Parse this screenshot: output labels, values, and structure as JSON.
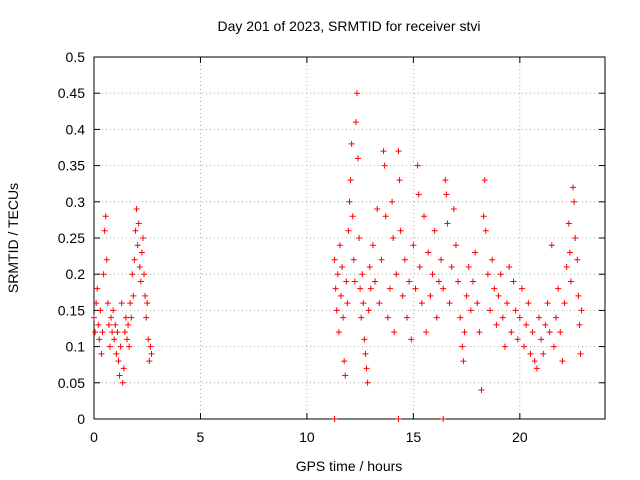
{
  "chart_data": {
    "type": "scatter",
    "title": "Day 201 of 2023, SRMTID for receiver stvi",
    "xlabel": "GPS time / hours",
    "ylabel": "SRMTID / TECUs",
    "xlim": [
      0,
      24
    ],
    "ylim": [
      0,
      0.5
    ],
    "xticks": [
      0,
      5,
      10,
      15,
      20
    ],
    "yticks": [
      0,
      0.05,
      0.1,
      0.15,
      0.2,
      0.25,
      0.3,
      0.35,
      0.4,
      0.45,
      0.5
    ],
    "grid": true,
    "marker": "+",
    "series": [
      {
        "color": "#ff0000",
        "points": [
          [
            0.0,
            0.14
          ],
          [
            0.05,
            0.12
          ],
          [
            0.1,
            0.16
          ],
          [
            0.15,
            0.18
          ],
          [
            0.2,
            0.13
          ],
          [
            0.25,
            0.11
          ],
          [
            0.3,
            0.15
          ],
          [
            0.35,
            0.09
          ],
          [
            0.4,
            0.12
          ],
          [
            0.45,
            0.2
          ],
          [
            0.5,
            0.26
          ],
          [
            0.55,
            0.28
          ],
          [
            0.6,
            0.22
          ],
          [
            0.65,
            0.16
          ],
          [
            0.7,
            0.13
          ],
          [
            0.75,
            0.1
          ],
          [
            0.8,
            0.14
          ],
          [
            0.85,
            0.12
          ],
          [
            0.9,
            0.15
          ],
          [
            0.95,
            0.11
          ],
          [
            1.0,
            0.13
          ],
          [
            1.05,
            0.09
          ],
          [
            1.1,
            0.12
          ],
          [
            1.15,
            0.08
          ],
          [
            1.2,
            0.06
          ],
          [
            1.25,
            0.1
          ],
          [
            1.3,
            0.16
          ],
          [
            1.35,
            0.05
          ],
          [
            1.4,
            0.07
          ],
          [
            1.45,
            0.12
          ],
          [
            1.5,
            0.14
          ],
          [
            1.55,
            0.11
          ],
          [
            1.6,
            0.13
          ],
          [
            1.65,
            0.1
          ],
          [
            1.7,
            0.16
          ],
          [
            1.75,
            0.14
          ],
          [
            1.8,
            0.2
          ],
          [
            1.85,
            0.17
          ],
          [
            1.9,
            0.22
          ],
          [
            1.95,
            0.26
          ],
          [
            2.0,
            0.29
          ],
          [
            2.05,
            0.24
          ],
          [
            2.1,
            0.27
          ],
          [
            2.15,
            0.21
          ],
          [
            2.2,
            0.19
          ],
          [
            2.25,
            0.23
          ],
          [
            2.3,
            0.25
          ],
          [
            2.35,
            0.2
          ],
          [
            2.4,
            0.17
          ],
          [
            2.45,
            0.14
          ],
          [
            2.5,
            0.16
          ],
          [
            2.55,
            0.11
          ],
          [
            2.6,
            0.08
          ],
          [
            2.65,
            0.1
          ],
          [
            2.7,
            0.09
          ],
          [
            11.3,
            0.22
          ],
          [
            11.35,
            0.18
          ],
          [
            11.4,
            0.15
          ],
          [
            11.45,
            0.2
          ],
          [
            11.5,
            0.12
          ],
          [
            11.55,
            0.24
          ],
          [
            11.6,
            0.17
          ],
          [
            11.65,
            0.21
          ],
          [
            11.7,
            0.14
          ],
          [
            11.75,
            0.08
          ],
          [
            11.8,
            0.06
          ],
          [
            11.85,
            0.19
          ],
          [
            11.9,
            0.16
          ],
          [
            11.95,
            0.26
          ],
          [
            12.0,
            0.3
          ],
          [
            12.05,
            0.33
          ],
          [
            12.1,
            0.38
          ],
          [
            12.15,
            0.28
          ],
          [
            12.2,
            0.22
          ],
          [
            12.25,
            0.19
          ],
          [
            12.3,
            0.41
          ],
          [
            12.35,
            0.45
          ],
          [
            12.4,
            0.36
          ],
          [
            12.45,
            0.25
          ],
          [
            12.5,
            0.18
          ],
          [
            12.55,
            0.14
          ],
          [
            12.6,
            0.2
          ],
          [
            12.65,
            0.16
          ],
          [
            12.7,
            0.11
          ],
          [
            12.75,
            0.09
          ],
          [
            12.8,
            0.07
          ],
          [
            12.85,
            0.05
          ],
          [
            12.9,
            0.15
          ],
          [
            12.95,
            0.21
          ],
          [
            13.0,
            0.18
          ],
          [
            13.1,
            0.24
          ],
          [
            13.2,
            0.19
          ],
          [
            13.3,
            0.29
          ],
          [
            13.4,
            0.16
          ],
          [
            13.5,
            0.22
          ],
          [
            13.6,
            0.37
          ],
          [
            13.65,
            0.35
          ],
          [
            13.7,
            0.28
          ],
          [
            13.8,
            0.14
          ],
          [
            13.9,
            0.18
          ],
          [
            14.0,
            0.3
          ],
          [
            14.05,
            0.25
          ],
          [
            14.1,
            0.12
          ],
          [
            14.2,
            0.2
          ],
          [
            14.3,
            0.37
          ],
          [
            14.35,
            0.33
          ],
          [
            14.4,
            0.26
          ],
          [
            14.5,
            0.17
          ],
          [
            14.6,
            0.22
          ],
          [
            14.7,
            0.14
          ],
          [
            14.8,
            0.19
          ],
          [
            14.9,
            0.11
          ],
          [
            15.0,
            0.24
          ],
          [
            15.1,
            0.18
          ],
          [
            15.2,
            0.35
          ],
          [
            15.25,
            0.31
          ],
          [
            15.3,
            0.21
          ],
          [
            15.4,
            0.16
          ],
          [
            15.5,
            0.28
          ],
          [
            15.6,
            0.12
          ],
          [
            15.7,
            0.23
          ],
          [
            15.8,
            0.17
          ],
          [
            15.9,
            0.2
          ],
          [
            16.0,
            0.26
          ],
          [
            16.1,
            0.14
          ],
          [
            16.2,
            0.19
          ],
          [
            16.3,
            0.22
          ],
          [
            16.4,
            0.18
          ],
          [
            16.5,
            0.33
          ],
          [
            16.55,
            0.31
          ],
          [
            16.6,
            0.27
          ],
          [
            16.7,
            0.16
          ],
          [
            16.8,
            0.21
          ],
          [
            16.9,
            0.29
          ],
          [
            17.0,
            0.24
          ],
          [
            17.1,
            0.19
          ],
          [
            17.2,
            0.14
          ],
          [
            17.3,
            0.1
          ],
          [
            17.35,
            0.08
          ],
          [
            17.4,
            0.12
          ],
          [
            17.5,
            0.17
          ],
          [
            17.6,
            0.21
          ],
          [
            17.7,
            0.15
          ],
          [
            17.8,
            0.19
          ],
          [
            17.9,
            0.23
          ],
          [
            18.0,
            0.16
          ],
          [
            18.1,
            0.12
          ],
          [
            18.2,
            0.04
          ],
          [
            18.3,
            0.28
          ],
          [
            18.35,
            0.33
          ],
          [
            18.4,
            0.26
          ],
          [
            18.5,
            0.2
          ],
          [
            18.6,
            0.15
          ],
          [
            18.7,
            0.22
          ],
          [
            18.8,
            0.18
          ],
          [
            18.9,
            0.13
          ],
          [
            19.0,
            0.17
          ],
          [
            19.1,
            0.2
          ],
          [
            19.2,
            0.14
          ],
          [
            19.3,
            0.1
          ],
          [
            19.4,
            0.16
          ],
          [
            19.5,
            0.21
          ],
          [
            19.6,
            0.12
          ],
          [
            19.7,
            0.19
          ],
          [
            19.8,
            0.15
          ],
          [
            19.9,
            0.11
          ],
          [
            20.0,
            0.14
          ],
          [
            20.1,
            0.18
          ],
          [
            20.2,
            0.1
          ],
          [
            20.3,
            0.13
          ],
          [
            20.4,
            0.16
          ],
          [
            20.5,
            0.09
          ],
          [
            20.6,
            0.12
          ],
          [
            20.7,
            0.08
          ],
          [
            20.8,
            0.07
          ],
          [
            20.9,
            0.14
          ],
          [
            21.0,
            0.11
          ],
          [
            21.1,
            0.09
          ],
          [
            21.2,
            0.13
          ],
          [
            21.3,
            0.16
          ],
          [
            21.4,
            0.12
          ],
          [
            21.5,
            0.24
          ],
          [
            21.6,
            0.1
          ],
          [
            21.7,
            0.14
          ],
          [
            21.8,
            0.18
          ],
          [
            21.9,
            0.12
          ],
          [
            22.0,
            0.08
          ],
          [
            22.1,
            0.16
          ],
          [
            22.2,
            0.21
          ],
          [
            22.3,
            0.27
          ],
          [
            22.35,
            0.23
          ],
          [
            22.4,
            0.19
          ],
          [
            22.5,
            0.32
          ],
          [
            22.55,
            0.3
          ],
          [
            22.6,
            0.25
          ],
          [
            22.7,
            0.22
          ],
          [
            22.75,
            0.17
          ],
          [
            22.8,
            0.13
          ],
          [
            22.85,
            0.09
          ],
          [
            22.9,
            0.15
          ],
          [
            11.3,
            0.0
          ],
          [
            14.3,
            0.0
          ],
          [
            16.4,
            0.0
          ]
        ]
      }
    ]
  }
}
